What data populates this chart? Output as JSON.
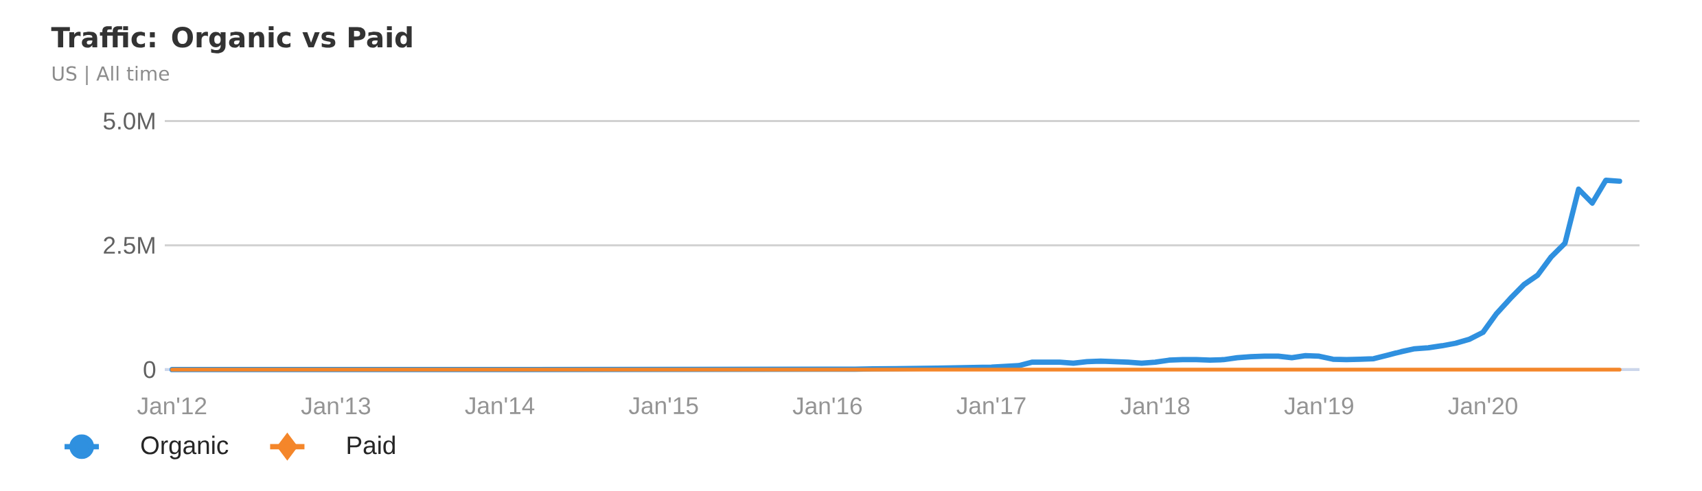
{
  "chart_data": {
    "type": "line",
    "title": "Traffic: Organic vs Paid",
    "subtitle": "US | All time",
    "x": [
      "2012-01",
      "2014-01",
      "2016-01",
      "2016-03",
      "2016-06",
      "2016-09",
      "2016-11",
      "2017-01",
      "2017-03",
      "2017-04",
      "2017-05",
      "2017-06",
      "2017-07",
      "2017-08",
      "2017-09",
      "2017-10",
      "2017-11",
      "2017-12",
      "2018-01",
      "2018-02",
      "2018-03",
      "2018-04",
      "2018-05",
      "2018-06",
      "2018-07",
      "2018-08",
      "2018-09",
      "2018-10",
      "2018-11",
      "2018-12",
      "2019-01",
      "2019-02",
      "2019-03",
      "2019-04",
      "2019-05",
      "2019-06",
      "2019-07",
      "2019-08",
      "2019-09",
      "2019-10",
      "2019-11",
      "2019-12",
      "2020-01",
      "2020-02",
      "2020-03",
      "2020-04",
      "2020-05",
      "2020-06",
      "2020-07",
      "2020-08",
      "2020-09",
      "2020-10",
      "2020-11"
    ],
    "series": [
      {
        "name": "Organic",
        "color": "#2f90df",
        "values": [
          0,
          0,
          10000,
          10000,
          20000,
          30000,
          40000,
          50000,
          80000,
          150000,
          150000,
          150000,
          130000,
          160000,
          170000,
          160000,
          150000,
          130000,
          150000,
          190000,
          200000,
          200000,
          190000,
          200000,
          240000,
          260000,
          270000,
          270000,
          240000,
          280000,
          270000,
          210000,
          200000,
          210000,
          220000,
          290000,
          360000,
          420000,
          440000,
          480000,
          530000,
          610000,
          750000,
          1130000,
          1430000,
          1710000,
          1900000,
          2270000,
          2540000,
          3630000,
          3350000,
          3810000,
          3790000
        ]
      },
      {
        "name": "Paid",
        "color": "#f4862a",
        "x": [
          "2012-01",
          "2020-11"
        ],
        "values": [
          0,
          0
        ]
      }
    ],
    "xlim": [
      "2011-12-15",
      "2020-12-15"
    ],
    "xticks": [
      {
        "value": "2012-01",
        "label": "Jan'12"
      },
      {
        "value": "2013-01",
        "label": "Jan'13"
      },
      {
        "value": "2014-01",
        "label": "Jan'14"
      },
      {
        "value": "2015-01",
        "label": "Jan'15"
      },
      {
        "value": "2016-01",
        "label": "Jan'16"
      },
      {
        "value": "2017-01",
        "label": "Jan'17"
      },
      {
        "value": "2018-01",
        "label": "Jan'18"
      },
      {
        "value": "2019-01",
        "label": "Jan'19"
      },
      {
        "value": "2020-01",
        "label": "Jan'20"
      }
    ],
    "ylim": [
      0,
      5000000
    ],
    "yticks": [
      0,
      {
        "value": 2500000,
        "label": "2.5M"
      },
      {
        "value": 5000000,
        "label": "5.0M"
      }
    ],
    "grid": "y",
    "legend": "bottom left",
    "line_style": "solid"
  }
}
